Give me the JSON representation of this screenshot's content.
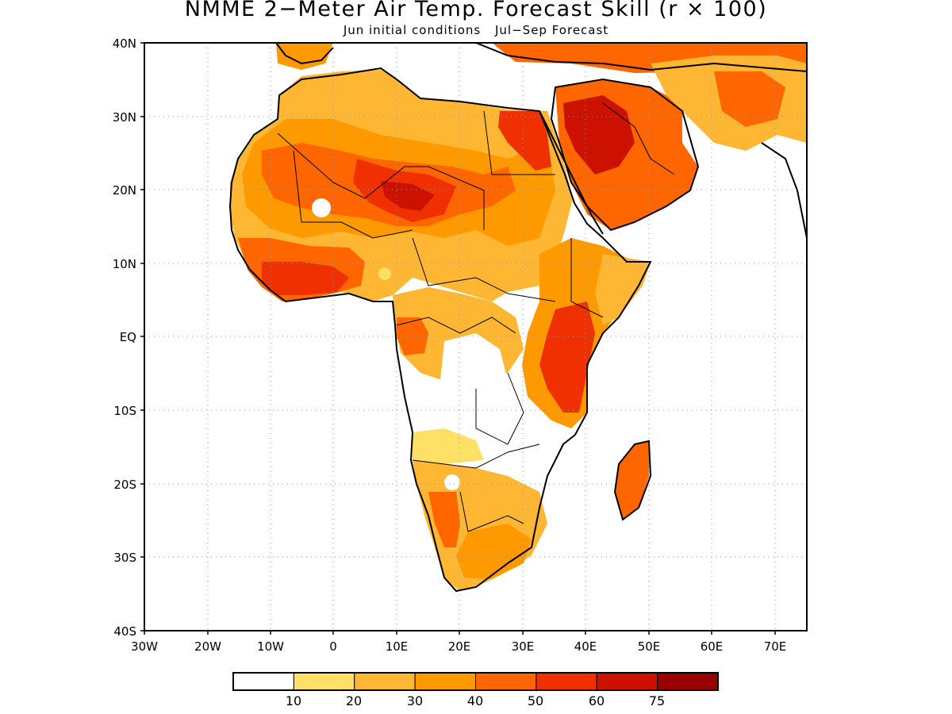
{
  "title": "NMME 2−Meter Air Temp. Forecast Skill (r × 100)",
  "subtitle": {
    "initial": "Jun initial conditions",
    "forecast": "Jul−Sep Forecast"
  },
  "axes": {
    "lat_labels": [
      "40N",
      "30N",
      "20N",
      "10N",
      "EQ",
      "10S",
      "20S",
      "30S",
      "40S"
    ],
    "lon_labels": [
      "30W",
      "20W",
      "10W",
      "0",
      "10E",
      "20E",
      "30E",
      "40E",
      "50E",
      "60E",
      "70E"
    ]
  },
  "map_data": {
    "region": "Africa and Arabian Peninsula",
    "lon_range": [
      -30,
      75
    ],
    "lat_range": [
      -40,
      40
    ],
    "grid": "dotted graticule every 10 degrees"
  },
  "colorbar": {
    "labels": [
      "10",
      "20",
      "30",
      "40",
      "50",
      "60",
      "75"
    ],
    "colors": [
      "#ffffff",
      "#ffe066",
      "#ffb733",
      "#ff9900",
      "#ff6600",
      "#f03000",
      "#cc1100",
      "#990000"
    ]
  }
}
